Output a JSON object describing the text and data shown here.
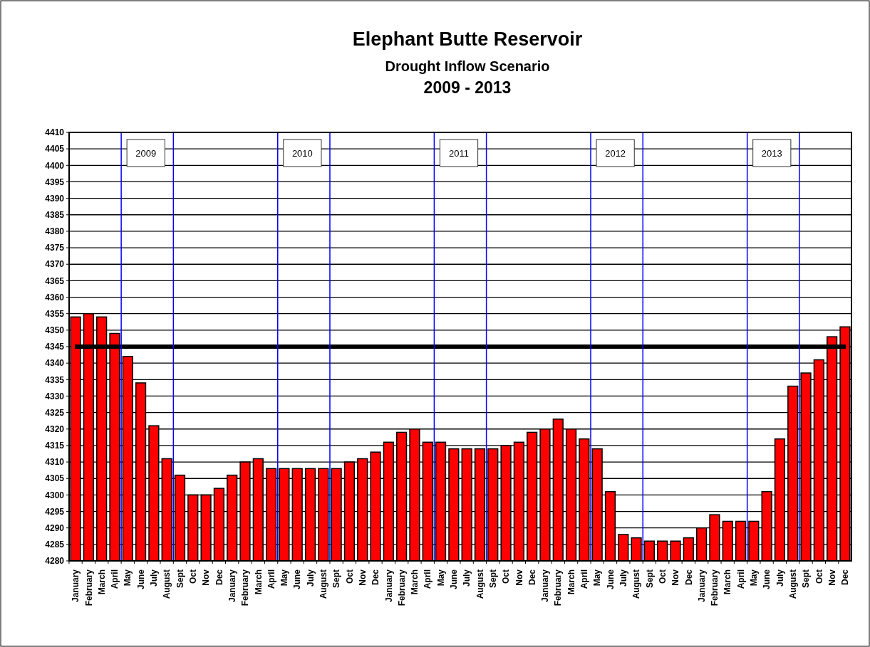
{
  "chart_data": {
    "type": "bar",
    "title": "Elephant Butte Reservoir",
    "subtitle": "Drought Inflow Scenario\n2009 - 2013",
    "categories": [
      "January",
      "February",
      "March",
      "April",
      "May",
      "June",
      "July",
      "August",
      "Sept",
      "Oct",
      "Nov",
      "Dec",
      "January",
      "February",
      "March",
      "April",
      "May",
      "June",
      "July",
      "August",
      "Sept",
      "Oct",
      "Nov",
      "Dec",
      "January",
      "February",
      "March",
      "April",
      "May",
      "June",
      "July",
      "August",
      "Sept",
      "Oct",
      "Nov",
      "Dec",
      "January",
      "February",
      "March",
      "April",
      "May",
      "June",
      "July",
      "August",
      "Sept",
      "Oct",
      "Nov",
      "Dec",
      "January",
      "February",
      "March",
      "April",
      "May",
      "June",
      "July",
      "August",
      "Sept",
      "Oct",
      "Nov",
      "Dec"
    ],
    "values": [
      4354,
      4355,
      4354,
      4349,
      4342,
      4334,
      4321,
      4311,
      4306,
      4300,
      4300,
      4302,
      4306,
      4310,
      4311,
      4308,
      4308,
      4308,
      4308,
      4308,
      4308,
      4310,
      4311,
      4313,
      4316,
      4319,
      4320,
      4316,
      4316,
      4314,
      4314,
      4314,
      4314,
      4315,
      4316,
      4319,
      4320,
      4323,
      4320,
      4317,
      4314,
      4301,
      4288,
      4287,
      4286,
      4286,
      4286,
      4287,
      4290,
      4294,
      4292,
      4292,
      4292,
      4301,
      4317,
      4333,
      4337,
      4341,
      4348,
      4351
    ],
    "color": "#ff0000",
    "ylim": [
      4280,
      4410
    ],
    "yticks": [
      4280,
      4285,
      4290,
      4295,
      4300,
      4305,
      4310,
      4315,
      4320,
      4325,
      4330,
      4335,
      4340,
      4345,
      4350,
      4355,
      4360,
      4365,
      4370,
      4375,
      4380,
      4385,
      4390,
      4395,
      4400,
      4405,
      4410
    ],
    "grid": "y",
    "ref_lines": [
      {
        "axis": "y",
        "value": 4345,
        "color": "#000000"
      }
    ],
    "annotations": [
      "2009",
      "2010",
      "2011",
      "2012",
      "2013"
    ]
  }
}
